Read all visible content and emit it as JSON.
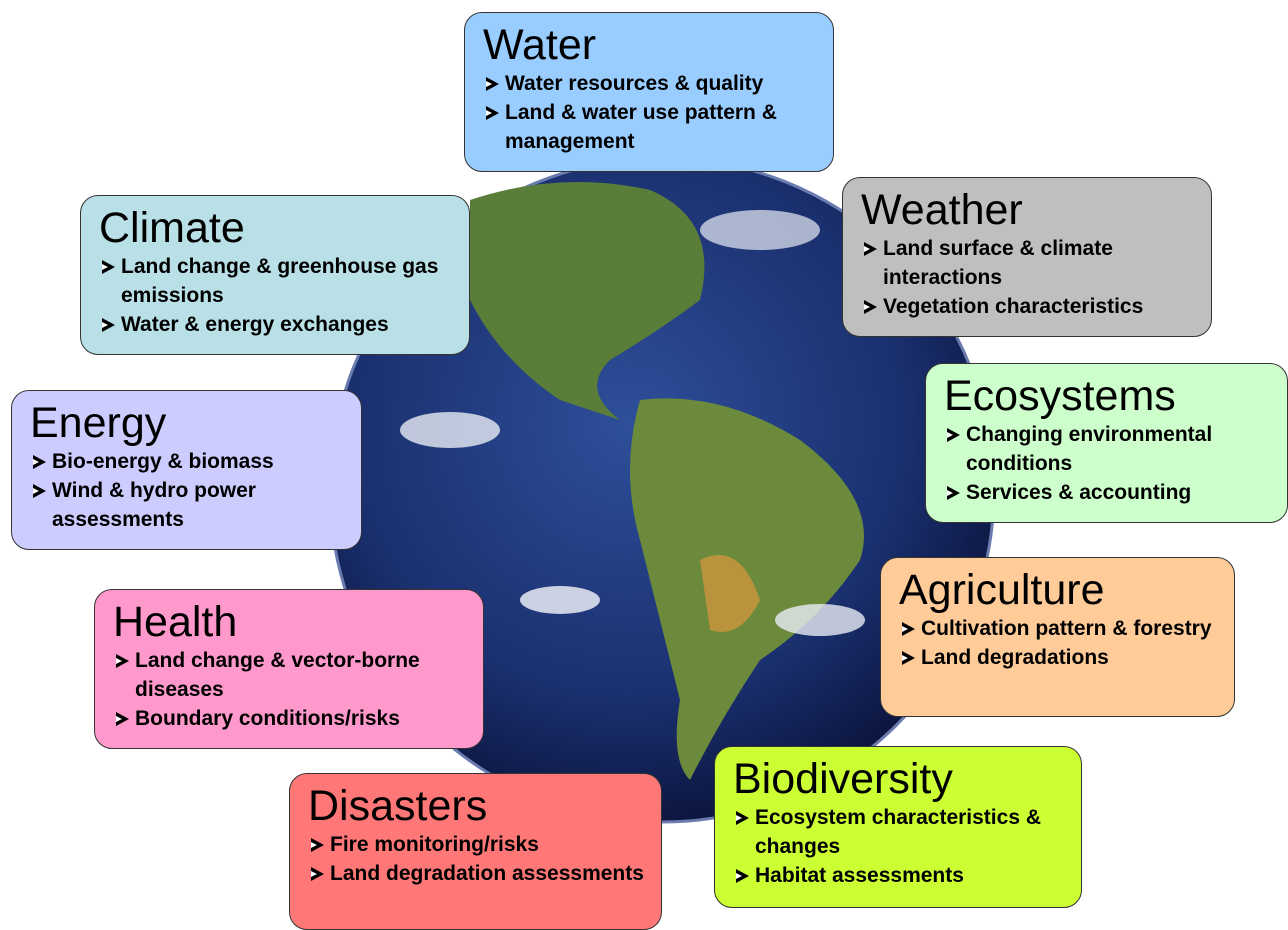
{
  "nodes": [
    {
      "title": "Water",
      "bullets": [
        "Water resources & quality",
        "Land & water use pattern & management"
      ]
    },
    {
      "title": "Weather",
      "bullets": [
        "Land surface & climate interactions",
        "Vegetation characteristics"
      ]
    },
    {
      "title": "Climate",
      "bullets": [
        "Land change & greenhouse gas emissions",
        "Water & energy exchanges"
      ]
    },
    {
      "title": "Energy",
      "bullets": [
        "Bio-energy & biomass",
        "Wind & hydro power assessments"
      ]
    },
    {
      "title": "Ecosystems",
      "bullets": [
        "Changing environmental conditions",
        "Services & accounting"
      ]
    },
    {
      "title": "Agriculture",
      "bullets": [
        "Cultivation pattern & forestry",
        "Land degradations"
      ]
    },
    {
      "title": "Health",
      "bullets": [
        "Land change & vector-borne diseases",
        "Boundary conditions/risks"
      ]
    },
    {
      "title": "Disasters",
      "bullets": [
        "Fire monitoring/risks",
        "Land degradation assessments"
      ]
    },
    {
      "title": "Biodiversity",
      "bullets": [
        "Ecosystem characteristics & changes",
        "Habitat assessments"
      ]
    }
  ]
}
